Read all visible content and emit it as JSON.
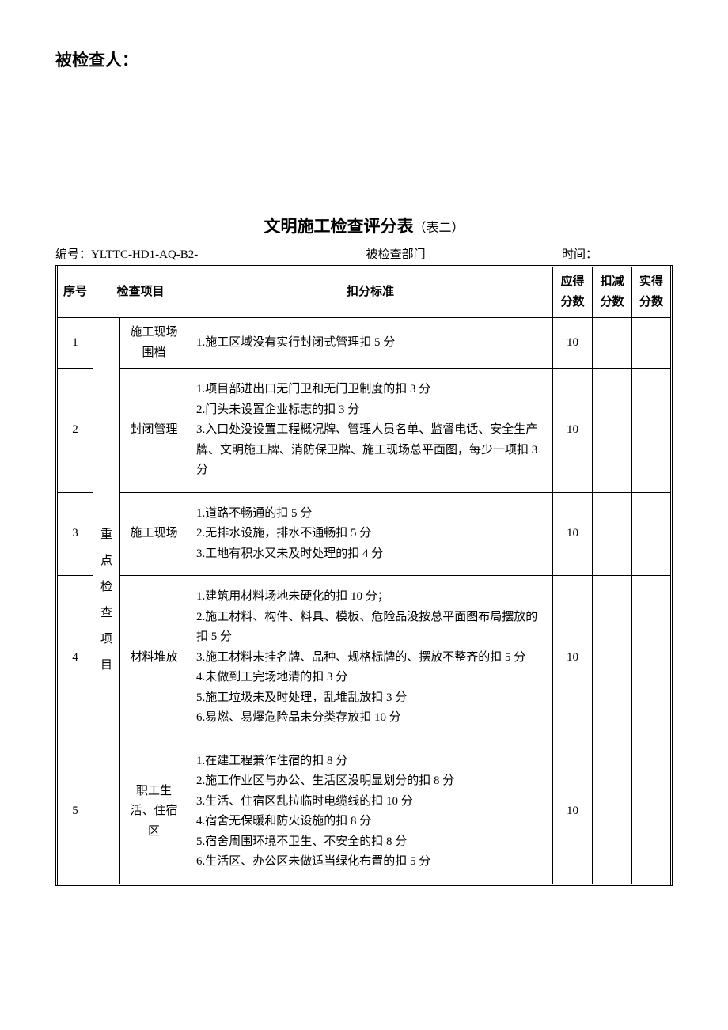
{
  "inspector_label": "被检查人：",
  "title_main": "文明施工检查评分表",
  "title_sub": "（表二）",
  "meta": {
    "code_label": "编号：",
    "code_value": "YLTTC-HD1-AQ-B2-",
    "dept_label": "被检查部门",
    "time_label": "时间："
  },
  "headers": {
    "seq": "序号",
    "item": "检查项目",
    "criteria": "扣分标准",
    "score_due": "应得分数",
    "score_deduct": "扣减分数",
    "score_actual": "实得分数"
  },
  "category_label": "重点检查项目",
  "rows": [
    {
      "seq": "1",
      "item": "施工现场围档",
      "criteria": [
        "1.施工区域没有实行封闭式管理扣 5 分"
      ],
      "due": "10"
    },
    {
      "seq": "2",
      "item": "封闭管理",
      "criteria": [
        "1.项目部进出口无门卫和无门卫制度的扣 3 分",
        "2.门头未设置企业标志的扣 3 分",
        "3.入口处没设置工程概况牌、管理人员名单、监督电话、安全生产牌、文明施工牌、消防保卫牌、施工现场总平面图，每少一项扣 3 分"
      ],
      "due": "10"
    },
    {
      "seq": "3",
      "item": "施工现场",
      "criteria": [
        "1.道路不畅通的扣 5 分",
        "2.无排水设施，排水不通畅扣 5 分",
        "3.工地有积水又未及时处理的扣 4 分"
      ],
      "due": "10"
    },
    {
      "seq": "4",
      "item": "材料堆放",
      "criteria": [
        "1.建筑用材料场地未硬化的扣 10 分；",
        "2.施工材料、构件、料具、模板、危险品没按总平面图布局摆放的扣 5 分",
        "3.施工材料未挂名牌、品种、规格标牌的、摆放不整齐的扣 5 分",
        "4.未做到工完场地清的扣 3 分",
        "5.施工垃圾未及时处理，乱堆乱放扣 3 分",
        "6.易燃、易爆危险品未分类存放扣 10 分"
      ],
      "due": "10"
    },
    {
      "seq": "5",
      "item": "职工生活、住宿区",
      "criteria": [
        "1.在建工程兼作住宿的扣 8 分",
        "2.施工作业区与办公、生活区没明显划分的扣 8 分",
        "3.生活、住宿区乱拉临时电缆线的扣 10 分",
        "4.宿舍无保暖和防火设施的扣 8 分",
        "5.宿舍周围环境不卫生、不安全的扣 8 分",
        "6.生活区、办公区未做适当绿化布置的扣 5 分"
      ],
      "due": "10"
    }
  ]
}
